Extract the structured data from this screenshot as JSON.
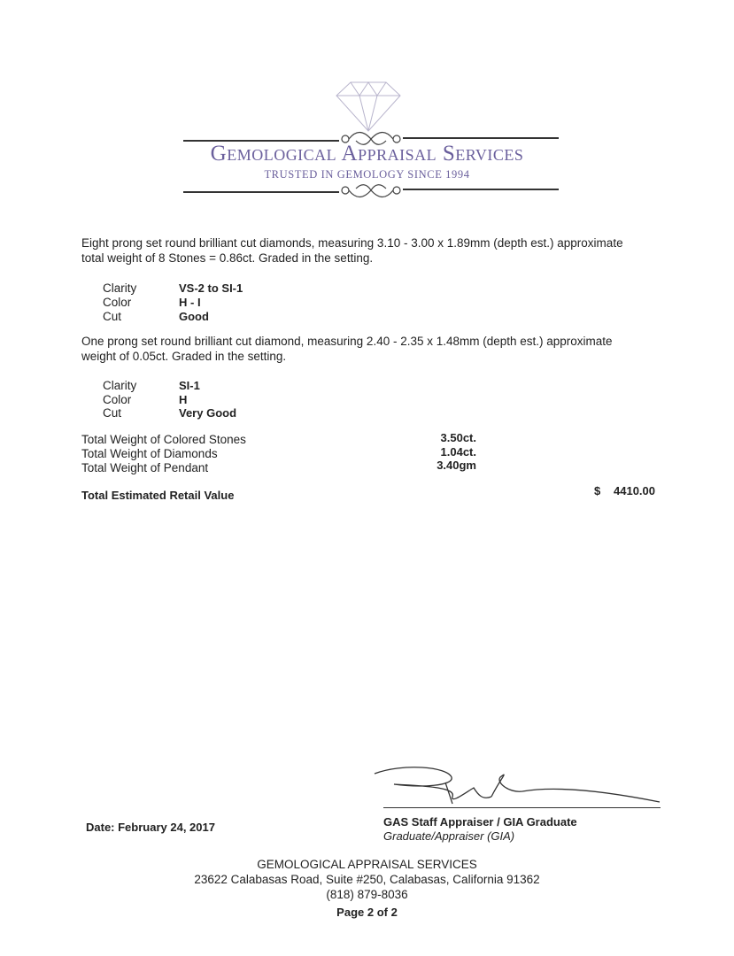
{
  "header": {
    "company": "Gemological Appraisal Services",
    "tagline": "TRUSTED IN GEMOLOGY SINCE 1994",
    "logo_icon": "diamond-icon",
    "brand_color": "#6a5f9c"
  },
  "sections": [
    {
      "description_line1": "Eight prong set round brilliant cut diamonds, measuring 3.10 - 3.00 x 1.89mm (depth est.) approximate",
      "description_line2": "total weight of 8 Stones = 0.86ct. Graded in the setting.",
      "grades": [
        {
          "label": "Clarity",
          "value": "VS-2 to SI-1"
        },
        {
          "label": "Color",
          "value": "H - I"
        },
        {
          "label": "Cut",
          "value": "Good"
        }
      ]
    },
    {
      "description_line1": "One prong set round brilliant cut diamond, measuring 2.40 - 2.35 x 1.48mm (depth est.) approximate",
      "description_line2": "weight of 0.05ct. Graded in the setting.",
      "grades": [
        {
          "label": "Clarity",
          "value": "SI-1"
        },
        {
          "label": "Color",
          "value": "H"
        },
        {
          "label": "Cut",
          "value": "Very Good"
        }
      ]
    }
  ],
  "totals": [
    {
      "label": "Total Weight of Colored Stones",
      "value": "3.50ct."
    },
    {
      "label": "Total Weight of Diamonds",
      "value": "1.04ct."
    },
    {
      "label": "Total Weight of Pendant",
      "value": "3.40gm"
    }
  ],
  "retail": {
    "label": "Total Estimated Retail Value",
    "currency": "$",
    "value": "4410.00"
  },
  "date": "Date: February 24, 2017",
  "signature": {
    "title": "GAS Staff Appraiser / GIA Graduate",
    "subtitle": "Graduate/Appraiser (GIA)"
  },
  "footer": {
    "company": "GEMOLOGICAL APPRAISAL SERVICES",
    "address": "23622 Calabasas Road, Suite #250, Calabasas, California 91362",
    "phone": "(818) 879-8036",
    "page": "Page 2 of 2"
  }
}
